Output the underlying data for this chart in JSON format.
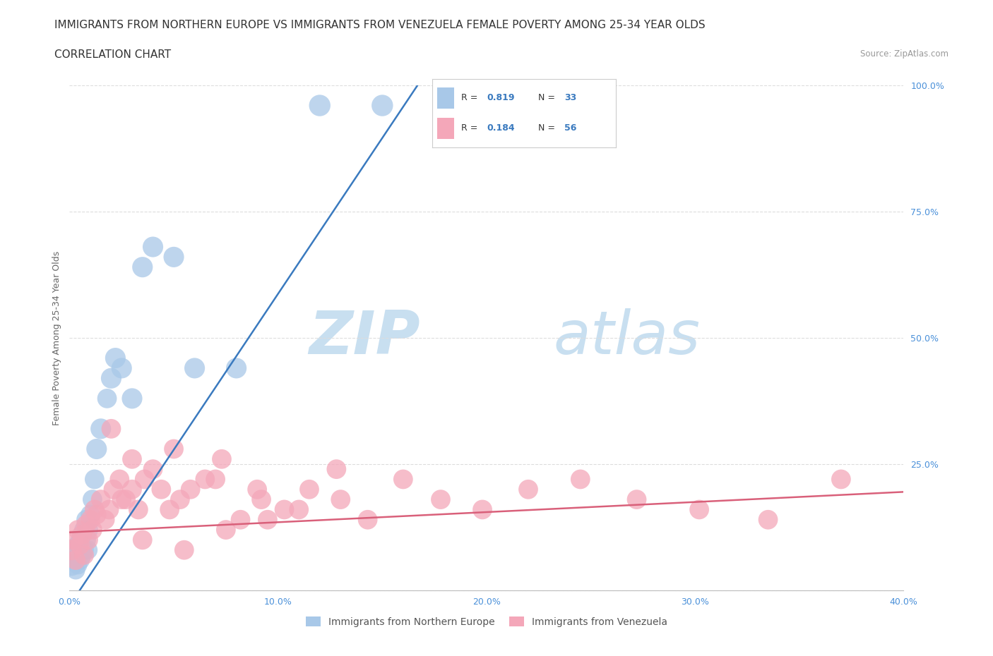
{
  "title": "IMMIGRANTS FROM NORTHERN EUROPE VS IMMIGRANTS FROM VENEZUELA FEMALE POVERTY AMONG 25-34 YEAR OLDS",
  "subtitle": "CORRELATION CHART",
  "source": "Source: ZipAtlas.com",
  "ylabel": "Female Poverty Among 25-34 Year Olds",
  "xlim": [
    0.0,
    0.4
  ],
  "ylim": [
    0.0,
    1.0
  ],
  "xticks": [
    0.0,
    0.1,
    0.2,
    0.3,
    0.4
  ],
  "yticks": [
    0.0,
    0.25,
    0.5,
    0.75,
    1.0
  ],
  "xticklabels": [
    "0.0%",
    "10.0%",
    "20.0%",
    "30.0%",
    "40.0%"
  ],
  "yticklabels": [
    "",
    "25.0%",
    "50.0%",
    "75.0%",
    "100.0%"
  ],
  "watermark_zip": "ZIP",
  "watermark_atlas": "atlas",
  "color_blue": "#a8c8e8",
  "color_pink": "#f4a7b9",
  "color_blue_line": "#3a7abf",
  "color_pink_line": "#d9607a",
  "color_r_value": "#3a7abf",
  "legend1_label": "Immigrants from Northern Europe",
  "legend2_label": "Immigrants from Venezuela",
  "legend_r1": "0.819",
  "legend_n1": "33",
  "legend_r2": "0.184",
  "legend_n2": "56",
  "blue_x": [
    0.001,
    0.002,
    0.003,
    0.003,
    0.004,
    0.004,
    0.005,
    0.005,
    0.006,
    0.006,
    0.007,
    0.007,
    0.008,
    0.008,
    0.009,
    0.009,
    0.01,
    0.011,
    0.012,
    0.013,
    0.015,
    0.018,
    0.02,
    0.022,
    0.025,
    0.03,
    0.035,
    0.04,
    0.05,
    0.06,
    0.08,
    0.12,
    0.15
  ],
  "blue_y": [
    0.05,
    0.06,
    0.04,
    0.07,
    0.05,
    0.09,
    0.06,
    0.1,
    0.07,
    0.11,
    0.08,
    0.12,
    0.1,
    0.14,
    0.08,
    0.12,
    0.15,
    0.18,
    0.22,
    0.28,
    0.32,
    0.38,
    0.42,
    0.46,
    0.44,
    0.38,
    0.64,
    0.68,
    0.66,
    0.44,
    0.44,
    0.96,
    0.96
  ],
  "blue_sizes": [
    60,
    50,
    45,
    50,
    45,
    50,
    50,
    45,
    50,
    50,
    50,
    50,
    50,
    50,
    45,
    50,
    50,
    50,
    50,
    55,
    55,
    50,
    55,
    55,
    55,
    55,
    55,
    55,
    55,
    55,
    55,
    60,
    60
  ],
  "pink_x": [
    0.001,
    0.002,
    0.003,
    0.004,
    0.005,
    0.006,
    0.007,
    0.008,
    0.009,
    0.01,
    0.011,
    0.012,
    0.013,
    0.015,
    0.017,
    0.019,
    0.021,
    0.024,
    0.027,
    0.03,
    0.033,
    0.036,
    0.04,
    0.044,
    0.048,
    0.053,
    0.058,
    0.065,
    0.073,
    0.082,
    0.092,
    0.103,
    0.115,
    0.128,
    0.143,
    0.16,
    0.178,
    0.198,
    0.22,
    0.245,
    0.272,
    0.302,
    0.335,
    0.37,
    0.03,
    0.05,
    0.07,
    0.09,
    0.11,
    0.13,
    0.035,
    0.055,
    0.075,
    0.095,
    0.02,
    0.025
  ],
  "pink_y": [
    0.08,
    0.1,
    0.06,
    0.12,
    0.09,
    0.11,
    0.07,
    0.13,
    0.1,
    0.14,
    0.12,
    0.16,
    0.15,
    0.18,
    0.14,
    0.16,
    0.2,
    0.22,
    0.18,
    0.2,
    0.16,
    0.22,
    0.24,
    0.2,
    0.16,
    0.18,
    0.2,
    0.22,
    0.26,
    0.14,
    0.18,
    0.16,
    0.2,
    0.24,
    0.14,
    0.22,
    0.18,
    0.16,
    0.2,
    0.22,
    0.18,
    0.16,
    0.14,
    0.22,
    0.26,
    0.28,
    0.22,
    0.2,
    0.16,
    0.18,
    0.1,
    0.08,
    0.12,
    0.14,
    0.32,
    0.18
  ],
  "pink_sizes": [
    55,
    50,
    50,
    50,
    50,
    50,
    50,
    50,
    50,
    50,
    50,
    50,
    50,
    50,
    50,
    50,
    50,
    50,
    50,
    50,
    50,
    50,
    50,
    50,
    50,
    50,
    50,
    50,
    50,
    50,
    50,
    50,
    50,
    50,
    50,
    50,
    50,
    50,
    50,
    50,
    50,
    50,
    50,
    50,
    50,
    50,
    50,
    50,
    50,
    50,
    50,
    50,
    50,
    50,
    50,
    50
  ],
  "grid_color": "#dddddd",
  "background_color": "#ffffff",
  "title_fontsize": 11,
  "subtitle_fontsize": 11,
  "axis_fontsize": 9,
  "tick_fontsize": 9,
  "blue_trend": [
    0.0,
    -0.03,
    0.175,
    1.05
  ],
  "pink_trend": [
    0.0,
    0.115,
    0.4,
    0.195
  ]
}
